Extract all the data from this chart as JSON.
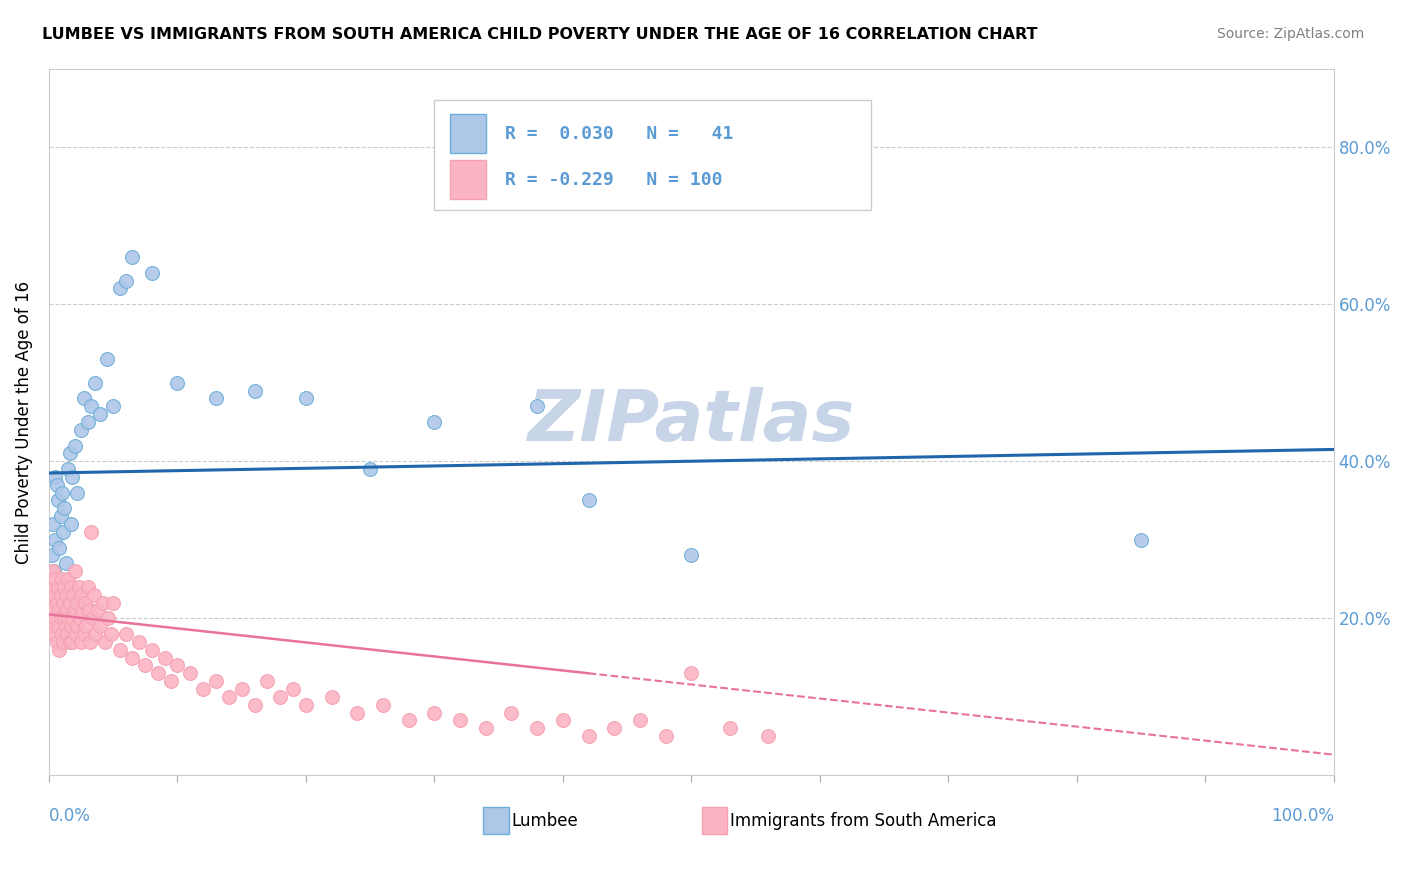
{
  "title": "LUMBEE VS IMMIGRANTS FROM SOUTH AMERICA CHILD POVERTY UNDER THE AGE OF 16 CORRELATION CHART",
  "source": "Source: ZipAtlas.com",
  "ylabel": "Child Poverty Under the Age of 16",
  "legend1_label": "Lumbee",
  "legend2_label": "Immigrants from South America",
  "R_lumbee": 0.03,
  "N_lumbee": 41,
  "R_immigrants": -0.229,
  "N_immigrants": 100,
  "lumbee_dot_fill": "#aec7e8",
  "lumbee_dot_edge": "#6baed6",
  "immigrants_dot_fill": "#fbb4c4",
  "immigrants_dot_edge": "#f4a0b0",
  "line_lumbee_color": "#2166ac",
  "line_immigrants_color": "#e8739a",
  "watermark_color": "#c8d4e8",
  "xlim": [
    0.0,
    1.0
  ],
  "ylim": [
    0.0,
    0.9
  ],
  "bg_color": "#ffffff",
  "grid_color": "#cccccc",
  "tick_color": "#5b9bd5",
  "lumbee_x": [
    0.002,
    0.003,
    0.004,
    0.005,
    0.005,
    0.006,
    0.007,
    0.008,
    0.009,
    0.01,
    0.011,
    0.012,
    0.013,
    0.015,
    0.016,
    0.017,
    0.018,
    0.02,
    0.022,
    0.025,
    0.027,
    0.03,
    0.033,
    0.036,
    0.04,
    0.045,
    0.05,
    0.055,
    0.06,
    0.065,
    0.08,
    0.1,
    0.13,
    0.16,
    0.2,
    0.25,
    0.3,
    0.38,
    0.42,
    0.5,
    0.85
  ],
  "lumbee_y": [
    0.28,
    0.32,
    0.26,
    0.38,
    0.3,
    0.37,
    0.35,
    0.29,
    0.33,
    0.36,
    0.31,
    0.34,
    0.27,
    0.39,
    0.41,
    0.32,
    0.38,
    0.42,
    0.36,
    0.44,
    0.48,
    0.45,
    0.47,
    0.5,
    0.46,
    0.53,
    0.47,
    0.62,
    0.63,
    0.66,
    0.64,
    0.5,
    0.48,
    0.49,
    0.48,
    0.39,
    0.45,
    0.47,
    0.35,
    0.28,
    0.3
  ],
  "immig_x": [
    0.001,
    0.002,
    0.002,
    0.003,
    0.003,
    0.004,
    0.004,
    0.005,
    0.005,
    0.006,
    0.006,
    0.007,
    0.007,
    0.008,
    0.008,
    0.009,
    0.009,
    0.01,
    0.01,
    0.011,
    0.011,
    0.012,
    0.012,
    0.013,
    0.013,
    0.014,
    0.014,
    0.015,
    0.015,
    0.016,
    0.016,
    0.017,
    0.017,
    0.018,
    0.018,
    0.019,
    0.02,
    0.02,
    0.021,
    0.022,
    0.022,
    0.023,
    0.024,
    0.025,
    0.025,
    0.026,
    0.027,
    0.028,
    0.029,
    0.03,
    0.031,
    0.032,
    0.033,
    0.034,
    0.035,
    0.036,
    0.038,
    0.04,
    0.042,
    0.044,
    0.046,
    0.048,
    0.05,
    0.055,
    0.06,
    0.065,
    0.07,
    0.075,
    0.08,
    0.085,
    0.09,
    0.095,
    0.1,
    0.11,
    0.12,
    0.13,
    0.14,
    0.15,
    0.16,
    0.17,
    0.18,
    0.19,
    0.2,
    0.22,
    0.24,
    0.26,
    0.28,
    0.3,
    0.32,
    0.34,
    0.36,
    0.38,
    0.4,
    0.42,
    0.44,
    0.46,
    0.48,
    0.5,
    0.53,
    0.56
  ],
  "immig_y": [
    0.22,
    0.19,
    0.24,
    0.21,
    0.26,
    0.18,
    0.23,
    0.2,
    0.25,
    0.17,
    0.22,
    0.19,
    0.24,
    0.21,
    0.16,
    0.23,
    0.2,
    0.18,
    0.25,
    0.22,
    0.17,
    0.2,
    0.24,
    0.19,
    0.23,
    0.18,
    0.21,
    0.2,
    0.25,
    0.17,
    0.22,
    0.19,
    0.24,
    0.2,
    0.17,
    0.23,
    0.21,
    0.26,
    0.18,
    0.22,
    0.19,
    0.24,
    0.2,
    0.17,
    0.23,
    0.21,
    0.18,
    0.22,
    0.19,
    0.24,
    0.21,
    0.17,
    0.31,
    0.2,
    0.23,
    0.18,
    0.21,
    0.19,
    0.22,
    0.17,
    0.2,
    0.18,
    0.22,
    0.16,
    0.18,
    0.15,
    0.17,
    0.14,
    0.16,
    0.13,
    0.15,
    0.12,
    0.14,
    0.13,
    0.11,
    0.12,
    0.1,
    0.11,
    0.09,
    0.12,
    0.1,
    0.11,
    0.09,
    0.1,
    0.08,
    0.09,
    0.07,
    0.08,
    0.07,
    0.06,
    0.08,
    0.06,
    0.07,
    0.05,
    0.06,
    0.07,
    0.05,
    0.13,
    0.06,
    0.05
  ]
}
